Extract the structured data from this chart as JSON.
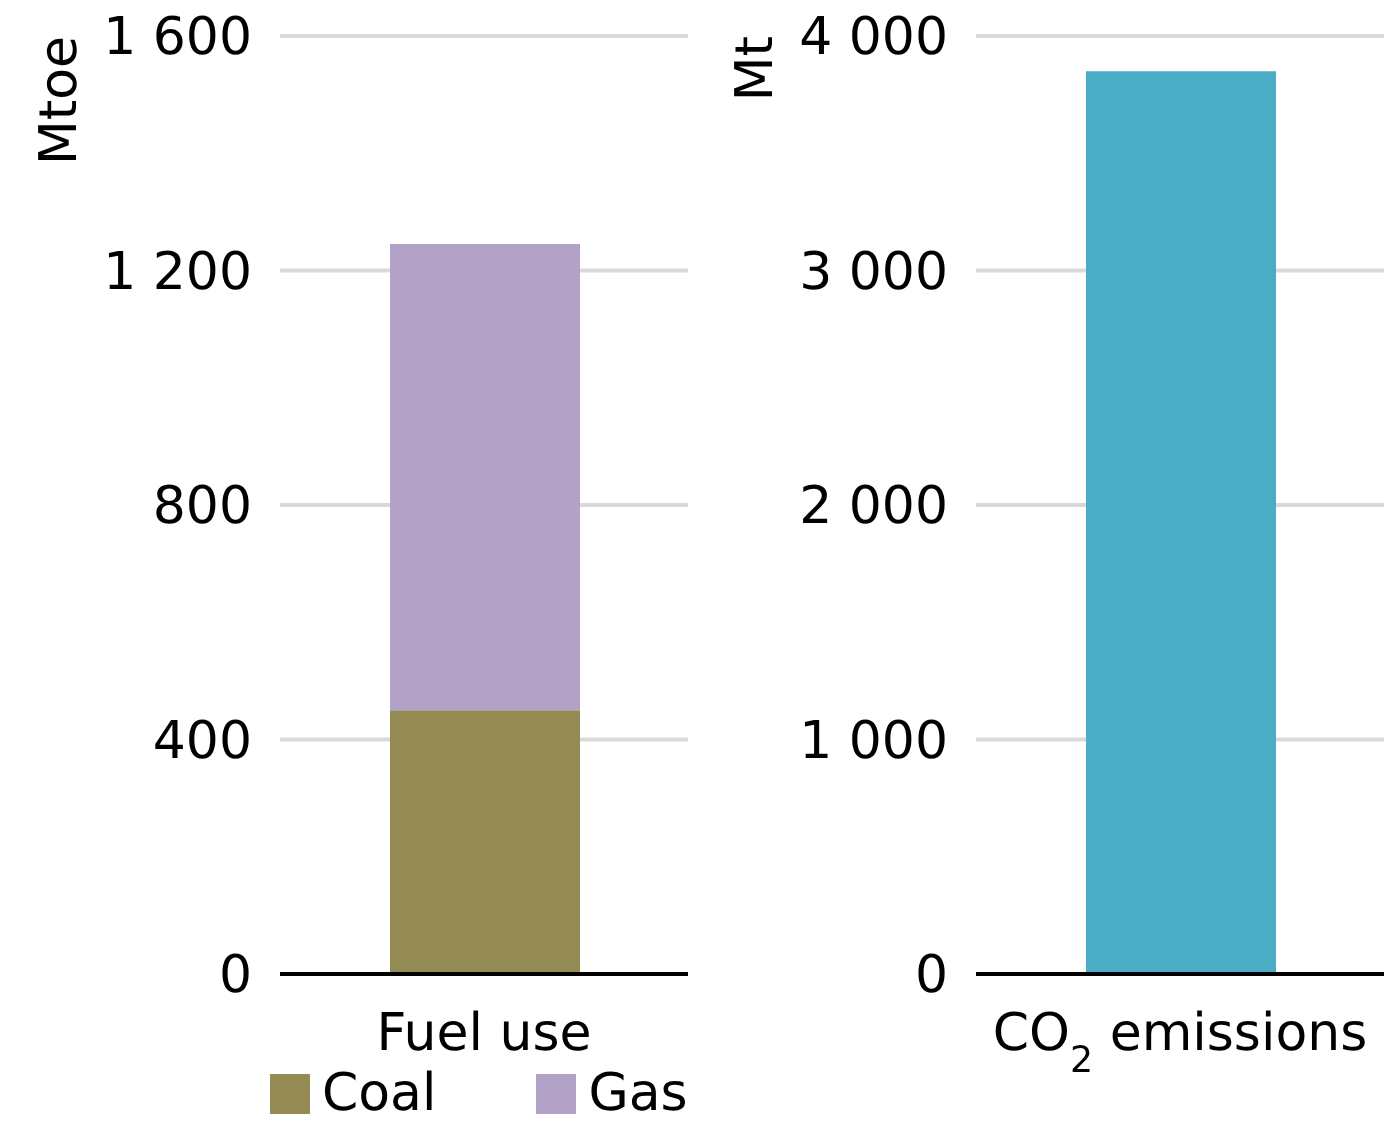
{
  "chart_data": [
    {
      "type": "bar",
      "stacked": true,
      "ylabel": "Mtoe",
      "categories": [
        "Fuel use"
      ],
      "series": [
        {
          "name": "Coal",
          "color": "#948a54",
          "values": [
            450
          ]
        },
        {
          "name": "Gas",
          "color": "#b3a2c7",
          "values": [
            795
          ]
        }
      ],
      "ylim": [
        0,
        1600
      ],
      "yticks": [
        0,
        {
          "value": 400,
          "label": "400"
        },
        {
          "value": 800,
          "label": "800"
        },
        {
          "value": 1200,
          "label": "1 200"
        },
        {
          "value": 1600,
          "label": "1 600"
        }
      ],
      "grid": "y",
      "legend": "bottom"
    },
    {
      "type": "bar",
      "ylabel": "Mt",
      "categories": [
        "CO$_{2}$ emissions"
      ],
      "values": [
        3850
      ],
      "color": "#4bacc6",
      "ylim": [
        0,
        4000
      ],
      "yticks": [
        0,
        {
          "value": 1000,
          "label": "1 000"
        },
        {
          "value": 2000,
          "label": "2 000"
        },
        {
          "value": 3000,
          "label": "3 000"
        },
        {
          "value": 4000,
          "label": "4 000"
        }
      ],
      "grid": "y"
    }
  ]
}
